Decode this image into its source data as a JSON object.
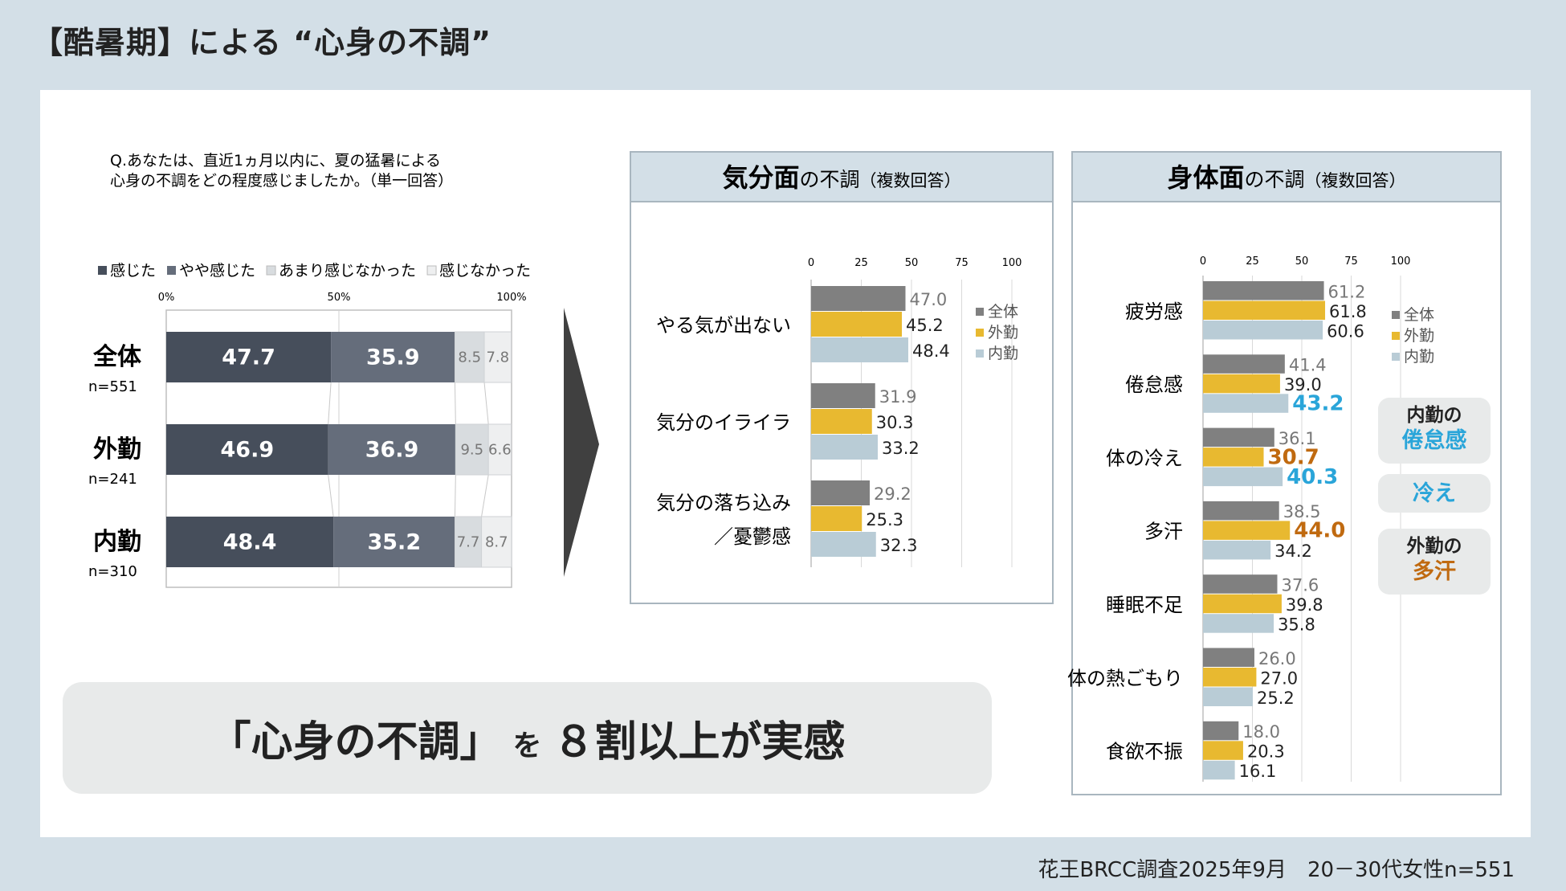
{
  "title": "【酷暑期】による “心身の不調”",
  "source": "花王BRCC調査2025年9月　20－30代女性n=551",
  "question": {
    "line1": "Q.あなたは、直近1ヵ月以内に、夏の猛暑による",
    "line2": "心身の不調をどの程度感じましたか。（単一回答）"
  },
  "banner": {
    "part1": "「心身の不調」",
    "part2": "を",
    "part3": "８割以上が実感"
  },
  "colors": {
    "stack1": "#464e5b",
    "stack2": "#656d7b",
    "stack3": "#d8dcdf",
    "stack4": "#eeeff0",
    "zentai": "#808080",
    "gaikin": "#e8b930",
    "naikin": "#b9ccd6",
    "header_bg": "#d3dfe7",
    "orange": "#c06a10",
    "blue": "#2aa5d9"
  },
  "chart_data": [
    {
      "type": "bar",
      "orientation": "horizontal-stacked",
      "legend": [
        "感じた",
        "やや感じた",
        "あまり感じなかった",
        "感じなかった"
      ],
      "legend_position": "top",
      "xlim": [
        0,
        100
      ],
      "x_ticks": [
        "0%",
        "50%",
        "100%"
      ],
      "categories": [
        {
          "name": "全体",
          "n": "n=551"
        },
        {
          "name": "外勤",
          "n": "n=241"
        },
        {
          "name": "内勤",
          "n": "n=310"
        }
      ],
      "series": [
        {
          "name": "感じた",
          "values": [
            47.7,
            46.9,
            48.4
          ]
        },
        {
          "name": "やや感じた",
          "values": [
            35.9,
            36.9,
            35.2
          ]
        },
        {
          "name": "あまり感じなかった",
          "values": [
            8.5,
            9.5,
            7.7
          ]
        },
        {
          "name": "感じなかった",
          "values": [
            7.8,
            6.6,
            8.7
          ]
        }
      ]
    },
    {
      "type": "bar",
      "orientation": "horizontal-grouped",
      "title_bold": "気分面",
      "title_rest": "の不調",
      "title_note": "（複数回答）",
      "xlim": [
        0,
        100
      ],
      "x_ticks": [
        "0",
        "25",
        "50",
        "75",
        "100"
      ],
      "legend": [
        "全体",
        "外勤",
        "内勤"
      ],
      "legend_position": "right",
      "categories": [
        "やる気が出ない",
        "気分のイライラ",
        "気分の落ち込み／憂鬱感"
      ],
      "category_lines": [
        [
          "やる気が出ない"
        ],
        [
          "気分のイライラ"
        ],
        [
          "気分の落ち込み",
          "／憂鬱感"
        ]
      ],
      "series": [
        {
          "name": "全体",
          "values": [
            47.0,
            31.9,
            29.2
          ],
          "labels": [
            "47.0",
            "31.9",
            "29.2"
          ]
        },
        {
          "name": "外勤",
          "values": [
            45.2,
            30.3,
            25.3
          ],
          "labels": [
            "45.2",
            "30.3",
            "25.3"
          ]
        },
        {
          "name": "内勤",
          "values": [
            48.4,
            33.2,
            32.3
          ],
          "labels": [
            "48.4",
            "33.2",
            "32.3"
          ]
        }
      ]
    },
    {
      "type": "bar",
      "orientation": "horizontal-grouped",
      "title_bold": "身体面",
      "title_rest": "の不調",
      "title_note": "（複数回答）",
      "xlim": [
        0,
        100
      ],
      "x_ticks": [
        "0",
        "25",
        "50",
        "75",
        "100"
      ],
      "legend": [
        "全体",
        "外勤",
        "内勤"
      ],
      "legend_position": "right",
      "categories": [
        "疲労感",
        "倦怠感",
        "体の冷え",
        "多汗",
        "睡眠不足",
        "体の熱ごもり",
        "食欲不振"
      ],
      "series": [
        {
          "name": "全体",
          "values": [
            61.2,
            41.4,
            36.1,
            38.5,
            37.6,
            26.0,
            18.0
          ],
          "labels": [
            "61.2",
            "41.4",
            "36.1",
            "38.5",
            "37.6",
            "26.0",
            "18.0"
          ]
        },
        {
          "name": "外勤",
          "values": [
            61.8,
            39.0,
            30.7,
            44.0,
            39.8,
            27.0,
            20.3
          ],
          "labels": [
            "61.8",
            "39.0",
            "30.7",
            "44.0",
            "39.8",
            "27.0",
            "20.3"
          ]
        },
        {
          "name": "内勤",
          "values": [
            60.6,
            43.2,
            40.3,
            34.2,
            35.8,
            25.2,
            16.1
          ],
          "labels": [
            "60.6",
            "43.2",
            "40.3",
            "34.2",
            "35.8",
            "25.2",
            "16.1"
          ]
        }
      ],
      "highlights": [
        {
          "category": 1,
          "series": 2,
          "color": "blue"
        },
        {
          "category": 2,
          "series": 1,
          "color": "orange"
        },
        {
          "category": 2,
          "series": 2,
          "color": "blue"
        },
        {
          "category": 3,
          "series": 1,
          "color": "orange"
        }
      ]
    }
  ],
  "callouts": [
    {
      "label": "内勤の",
      "value": "倦怠感",
      "color": "blue"
    },
    {
      "label": "",
      "value": "冷え",
      "color": "blue"
    },
    {
      "label": "外勤の",
      "value": "多汗",
      "color": "orange"
    }
  ]
}
